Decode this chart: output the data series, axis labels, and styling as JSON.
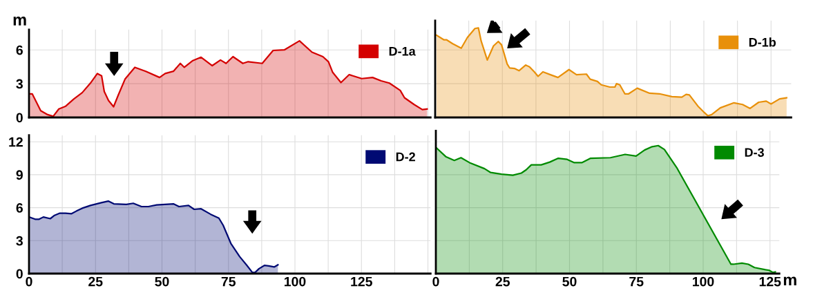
{
  "chart_data": [
    {
      "type": "area",
      "ylabel": "m",
      "xlim": [
        0,
        151
      ],
      "ylim": [
        0,
        7.8
      ],
      "tick_labels": "y",
      "grid": true,
      "legend": "top right",
      "xticks": [
        0,
        {
          "value": 12.5,
          "label": null
        },
        25,
        {
          "value": 37.5,
          "label": null
        },
        50,
        {
          "value": 62.5,
          "label": null
        },
        75,
        {
          "value": 87.5,
          "label": null
        },
        100,
        {
          "value": 112.5,
          "label": null
        },
        125,
        {
          "value": 137.5,
          "label": null
        },
        {
          "value": 150,
          "label": null
        }
      ],
      "yticks": [
        0,
        3,
        6
      ],
      "series": [
        {
          "name": "D-1a",
          "color": "#d40000",
          "x": [
            0,
            1.2,
            4.4,
            7,
            9.1,
            11.2,
            13.8,
            16.9,
            20,
            23.1,
            25.7,
            27.3,
            28.3,
            29.9,
            31.8,
            33.5,
            36.1,
            39.8,
            43.9,
            49.1,
            51.2,
            54.3,
            56.9,
            58.4,
            61.6,
            64.7,
            68.9,
            72,
            74.1,
            76.7,
            80.4,
            82.4,
            87.7,
            91.8,
            96,
            101.7,
            106.4,
            110.5,
            112.6,
            114.2,
            117.3,
            120.4,
            125.1,
            129.2,
            132.4,
            135.5,
            139.6,
            141.2,
            144.8,
            147.9,
            149.7
          ],
          "values": [
            2.1,
            2.1,
            0.6,
            0.25,
            0.1,
            0.75,
            1.0,
            1.65,
            2.2,
            3.05,
            3.9,
            3.7,
            2.3,
            1.5,
            0.95,
            1.95,
            3.4,
            4.45,
            4.1,
            3.55,
            3.9,
            4.1,
            4.8,
            4.45,
            5.05,
            5.35,
            4.6,
            5.1,
            4.8,
            5.4,
            4.8,
            4.95,
            4.8,
            5.95,
            6.0,
            6.8,
            5.8,
            5.4,
            4.95,
            4.0,
            3.1,
            3.8,
            3.45,
            3.55,
            3.25,
            3.05,
            2.4,
            1.75,
            1.15,
            0.7,
            0.75
          ]
        }
      ]
    },
    {
      "type": "area",
      "xlim": [
        0,
        132.5
      ],
      "ylim": [
        0,
        8.6
      ],
      "tick_labels": false,
      "grid": true,
      "legend": "top right",
      "xticks": [
        0,
        {
          "value": 12.5,
          "label": null
        },
        25,
        {
          "value": 37.5,
          "label": null
        },
        50,
        {
          "value": 62.5,
          "label": null
        },
        75,
        {
          "value": 87.5,
          "label": null
        },
        100,
        {
          "value": 112.5,
          "label": null
        },
        125
      ],
      "yticks": [
        0,
        3,
        6
      ],
      "series": [
        {
          "name": "D-1b",
          "color": "#e8900a",
          "x": [
            0.5,
            3.2,
            4.2,
            6.5,
            9.7,
            12,
            14.8,
            16.1,
            17.1,
            19.4,
            21.7,
            23.5,
            24.7,
            26.8,
            27.7,
            29.5,
            31.2,
            33.7,
            35.1,
            36.9,
            38.3,
            40.1,
            43.4,
            45.7,
            49.8,
            52.6,
            56.3,
            57.7,
            60.4,
            61.8,
            65,
            66.9,
            67.5,
            68.7,
            70.6,
            72,
            75.2,
            79.8,
            83.5,
            88.1,
            91.8,
            93.4,
            94.6,
            97.8,
            100.1,
            101.5,
            102.9,
            106.1,
            111.2,
            114.4,
            117.2,
            120.4,
            123.2,
            125,
            128.2,
            130.8
          ],
          "values": [
            7.3,
            6.9,
            6.9,
            6.55,
            6.15,
            7.1,
            7.9,
            7.95,
            6.8,
            5.1,
            6.35,
            6.75,
            6.45,
            4.75,
            4.4,
            4.35,
            4.15,
            4.65,
            4.5,
            4.05,
            3.65,
            4.05,
            3.75,
            3.55,
            4.25,
            3.8,
            3.85,
            3.4,
            3.2,
            2.9,
            2.7,
            2.7,
            3.0,
            2.9,
            2.1,
            2.1,
            2.6,
            2.15,
            2.1,
            1.85,
            1.8,
            2.05,
            2.0,
            1.0,
            0.45,
            0.15,
            0.25,
            0.85,
            1.3,
            1.15,
            0.8,
            1.35,
            1.45,
            1.2,
            1.65,
            1.75
          ]
        }
      ]
    },
    {
      "type": "area",
      "xlim": [
        0,
        151
      ],
      "ylim": [
        0,
        12.6
      ],
      "grid": true,
      "legend": "top right",
      "xticks": [
        0,
        {
          "value": 12.5,
          "label": null
        },
        25,
        {
          "value": 37.5,
          "label": null
        },
        50,
        {
          "value": 62.5,
          "label": null
        },
        75,
        {
          "value": 87.5,
          "label": null
        },
        100,
        {
          "value": 112.5,
          "label": null
        },
        125,
        {
          "value": 137.5,
          "label": null
        },
        {
          "value": 150,
          "label": null
        }
      ],
      "yticks": [
        0,
        3,
        6,
        9,
        12
      ],
      "series": [
        {
          "name": "D-2",
          "color": "#000a73",
          "x": [
            0,
            2.3,
            3.8,
            5.4,
            8,
            9.6,
            11.6,
            13.7,
            16,
            17.9,
            20,
            23.1,
            27.2,
            29.8,
            31.9,
            36.6,
            39.2,
            42.3,
            44.9,
            48,
            54.3,
            56.4,
            60,
            62.1,
            64.7,
            68.3,
            71.4,
            73,
            75.9,
            79.2,
            81.9,
            84,
            85,
            86.5,
            88.6,
            90.1,
            92.2,
            93.6
          ],
          "values": [
            5.15,
            4.95,
            4.95,
            5.15,
            5.0,
            5.3,
            5.5,
            5.5,
            5.45,
            5.7,
            5.95,
            6.2,
            6.45,
            6.6,
            6.35,
            6.3,
            6.4,
            6.1,
            6.1,
            6.25,
            6.35,
            6.1,
            6.2,
            5.85,
            5.9,
            5.4,
            5.05,
            4.4,
            2.75,
            1.55,
            0.75,
            0.1,
            0.1,
            0.45,
            0.75,
            0.7,
            0.6,
            0.8
          ]
        }
      ]
    },
    {
      "type": "area",
      "xlabel": "m",
      "xlim": [
        0,
        128.5
      ],
      "ylim": [
        0,
        13
      ],
      "tick_labels": "x",
      "grid": true,
      "legend": "top right",
      "xticks": [
        0,
        {
          "value": 12.5,
          "label": null
        },
        25,
        {
          "value": 37.5,
          "label": null
        },
        50,
        {
          "value": 62.5,
          "label": null
        },
        75,
        {
          "value": 87.5,
          "label": null
        },
        100,
        {
          "value": 112.5,
          "label": null
        },
        125
      ],
      "yticks": [
        0,
        3,
        6,
        9,
        12
      ],
      "series": [
        {
          "name": "D-3",
          "color": "#008a00",
          "x": [
            0.2,
            3.7,
            6.9,
            9.4,
            12.6,
            18.2,
            20.5,
            24.6,
            28.8,
            32,
            33.8,
            35.7,
            39.4,
            42.6,
            45.8,
            49.1,
            51.8,
            54.6,
            57.9,
            65.3,
            70.8,
            74.9,
            78.1,
            80.9,
            83.2,
            85.5,
            90.1,
            110.4,
            111.3,
            114.5,
            116.9,
            119.2,
            123.3,
            124.7,
            126.1,
            127
          ],
          "values": [
            11.45,
            10.65,
            10.3,
            10.55,
            10.1,
            9.55,
            9.2,
            9.05,
            8.95,
            9.15,
            9.45,
            9.9,
            9.9,
            10.15,
            10.5,
            10.4,
            10.1,
            10.1,
            10.5,
            10.55,
            10.85,
            10.7,
            11.25,
            11.55,
            11.65,
            11.3,
            9.65,
            0.85,
            0.85,
            0.95,
            0.85,
            0.55,
            0.35,
            0.3,
            0.1,
            0.15
          ]
        }
      ]
    }
  ]
}
